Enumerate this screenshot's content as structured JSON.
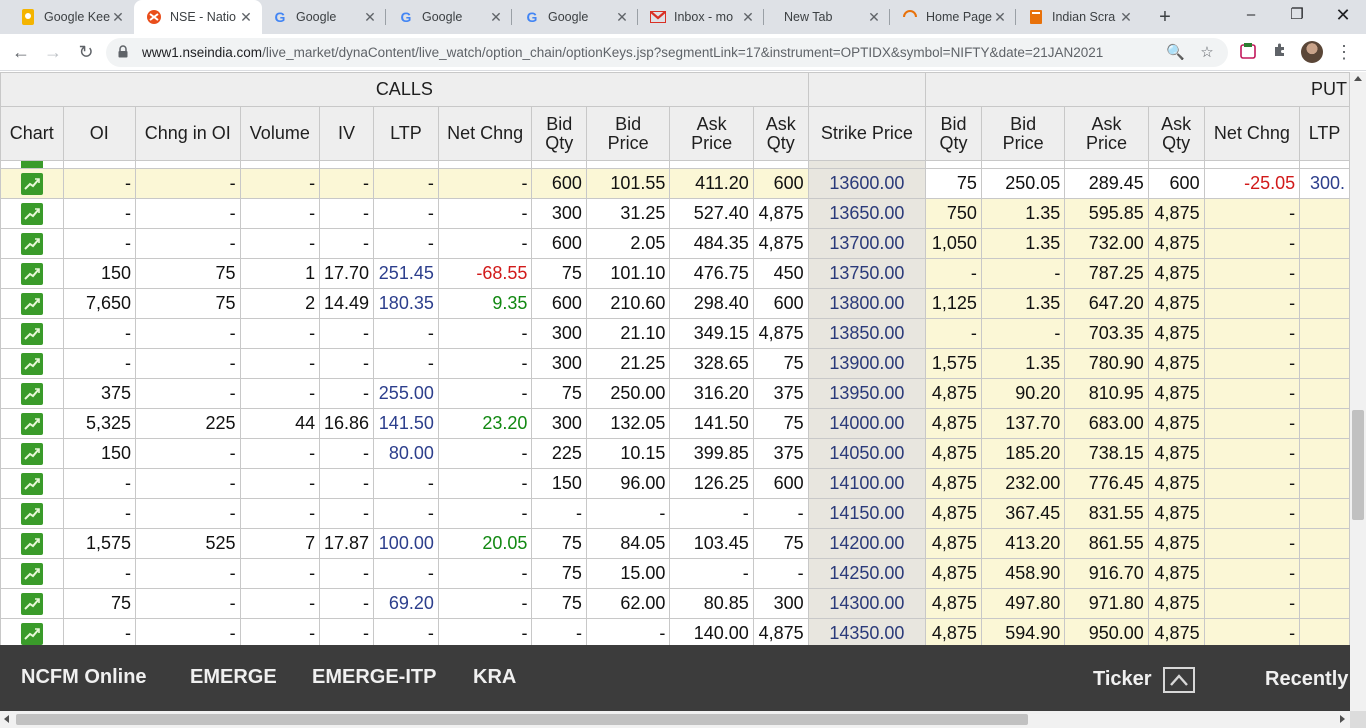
{
  "browser": {
    "tabs": [
      {
        "title": "Google Kee",
        "icon": "google-keep-icon",
        "active": false
      },
      {
        "title": "NSE - Natio",
        "icon": "nse-logo-icon",
        "active": true
      },
      {
        "title": "Google",
        "icon": "google-icon",
        "active": false
      },
      {
        "title": "Google",
        "icon": "google-icon",
        "active": false
      },
      {
        "title": "Google",
        "icon": "google-icon",
        "active": false
      },
      {
        "title": "Inbox - mo",
        "icon": "gmail-icon",
        "active": false
      },
      {
        "title": "New Tab",
        "icon": "",
        "active": false
      },
      {
        "title": "Home Page",
        "icon": "loading-icon",
        "active": false
      },
      {
        "title": "Indian Scra",
        "icon": "book-icon",
        "active": false
      }
    ],
    "url_host": "www1.nseindia.com",
    "url_path": "/live_market/dynaContent/live_watch/option_chain/optionKeys.jsp?segmentLink=17&instrument=OPTIDX&symbol=NIFTY&date=21JAN2021"
  },
  "table": {
    "calls_label": "CALLS",
    "puts_label": "PUT",
    "headers": [
      "Chart",
      "OI",
      "Chng in OI",
      "Volume",
      "IV",
      "LTP",
      "Net Chng",
      "Bid Qty",
      "Bid Price",
      "Ask Price",
      "Ask Qty",
      "Strike Price",
      "Bid Qty",
      "Bid Price",
      "Ask Price",
      "Ask Qty",
      "Net Chng",
      "LTP"
    ],
    "rows": [
      {
        "call": [
          "-",
          "-",
          "-",
          "-",
          "-",
          "-",
          "600",
          "101.55",
          "411.20",
          "600"
        ],
        "strike": "13600.00",
        "put": [
          "75",
          "250.05",
          "289.45",
          "600",
          "-25.05",
          "300."
        ],
        "calls_itm": true,
        "puts_itm": false
      },
      {
        "call": [
          "-",
          "-",
          "-",
          "-",
          "-",
          "-",
          "300",
          "31.25",
          "527.40",
          "4,875"
        ],
        "strike": "13650.00",
        "put": [
          "750",
          "1.35",
          "595.85",
          "4,875",
          "-",
          ""
        ],
        "calls_itm": false,
        "puts_itm": true
      },
      {
        "call": [
          "-",
          "-",
          "-",
          "-",
          "-",
          "-",
          "600",
          "2.05",
          "484.35",
          "4,875"
        ],
        "strike": "13700.00",
        "put": [
          "1,050",
          "1.35",
          "732.00",
          "4,875",
          "-",
          ""
        ],
        "calls_itm": false,
        "puts_itm": true
      },
      {
        "call": [
          "150",
          "75",
          "1",
          "17.70",
          "251.45",
          "-68.55",
          "75",
          "101.10",
          "476.75",
          "450"
        ],
        "strike": "13750.00",
        "put": [
          "-",
          "-",
          "787.25",
          "4,875",
          "-",
          ""
        ],
        "calls_itm": false,
        "puts_itm": true
      },
      {
        "call": [
          "7,650",
          "75",
          "2",
          "14.49",
          "180.35",
          "9.35",
          "600",
          "210.60",
          "298.40",
          "600"
        ],
        "strike": "13800.00",
        "put": [
          "1,125",
          "1.35",
          "647.20",
          "4,875",
          "-",
          ""
        ],
        "calls_itm": false,
        "puts_itm": true
      },
      {
        "call": [
          "-",
          "-",
          "-",
          "-",
          "-",
          "-",
          "300",
          "21.10",
          "349.15",
          "4,875"
        ],
        "strike": "13850.00",
        "put": [
          "-",
          "-",
          "703.35",
          "4,875",
          "-",
          ""
        ],
        "calls_itm": false,
        "puts_itm": true
      },
      {
        "call": [
          "-",
          "-",
          "-",
          "-",
          "-",
          "-",
          "300",
          "21.25",
          "328.65",
          "75"
        ],
        "strike": "13900.00",
        "put": [
          "1,575",
          "1.35",
          "780.90",
          "4,875",
          "-",
          ""
        ],
        "calls_itm": false,
        "puts_itm": true
      },
      {
        "call": [
          "375",
          "-",
          "-",
          "-",
          "255.00",
          "-",
          "75",
          "250.00",
          "316.20",
          "375"
        ],
        "strike": "13950.00",
        "put": [
          "4,875",
          "90.20",
          "810.95",
          "4,875",
          "-",
          ""
        ],
        "calls_itm": false,
        "puts_itm": true
      },
      {
        "call": [
          "5,325",
          "225",
          "44",
          "16.86",
          "141.50",
          "23.20",
          "300",
          "132.05",
          "141.50",
          "75"
        ],
        "strike": "14000.00",
        "put": [
          "4,875",
          "137.70",
          "683.00",
          "4,875",
          "-",
          ""
        ],
        "calls_itm": false,
        "puts_itm": true
      },
      {
        "call": [
          "150",
          "-",
          "-",
          "-",
          "80.00",
          "-",
          "225",
          "10.15",
          "399.85",
          "375"
        ],
        "strike": "14050.00",
        "put": [
          "4,875",
          "185.20",
          "738.15",
          "4,875",
          "-",
          ""
        ],
        "calls_itm": false,
        "puts_itm": true
      },
      {
        "call": [
          "-",
          "-",
          "-",
          "-",
          "-",
          "-",
          "150",
          "96.00",
          "126.25",
          "600"
        ],
        "strike": "14100.00",
        "put": [
          "4,875",
          "232.00",
          "776.45",
          "4,875",
          "-",
          ""
        ],
        "calls_itm": false,
        "puts_itm": true
      },
      {
        "call": [
          "-",
          "-",
          "-",
          "-",
          "-",
          "-",
          "-",
          "-",
          "-",
          "-"
        ],
        "strike": "14150.00",
        "put": [
          "4,875",
          "367.45",
          "831.55",
          "4,875",
          "-",
          ""
        ],
        "calls_itm": false,
        "puts_itm": true
      },
      {
        "call": [
          "1,575",
          "525",
          "7",
          "17.87",
          "100.00",
          "20.05",
          "75",
          "84.05",
          "103.45",
          "75"
        ],
        "strike": "14200.00",
        "put": [
          "4,875",
          "413.20",
          "861.55",
          "4,875",
          "-",
          ""
        ],
        "calls_itm": false,
        "puts_itm": true
      },
      {
        "call": [
          "-",
          "-",
          "-",
          "-",
          "-",
          "-",
          "75",
          "15.00",
          "-",
          "-"
        ],
        "strike": "14250.00",
        "put": [
          "4,875",
          "458.90",
          "916.70",
          "4,875",
          "-",
          ""
        ],
        "calls_itm": false,
        "puts_itm": true
      },
      {
        "call": [
          "75",
          "-",
          "-",
          "-",
          "69.20",
          "-",
          "75",
          "62.00",
          "80.85",
          "300"
        ],
        "strike": "14300.00",
        "put": [
          "4,875",
          "497.80",
          "971.80",
          "4,875",
          "-",
          ""
        ],
        "calls_itm": false,
        "puts_itm": true
      },
      {
        "call": [
          "-",
          "-",
          "-",
          "-",
          "-",
          "-",
          "-",
          "-",
          "140.00",
          "4,875"
        ],
        "strike": "14350.00",
        "put": [
          "4,875",
          "594.90",
          "950.00",
          "4,875",
          "-",
          ""
        ],
        "calls_itm": false,
        "puts_itm": true
      }
    ]
  },
  "footer": {
    "links": [
      "NCFM Online",
      "EMERGE",
      "EMERGE-ITP",
      "KRA"
    ],
    "ticker_label": "Ticker",
    "recently_label": "Recently"
  },
  "colors": {
    "itm_background": "#fbf7d6",
    "strike_background": "#e8e6df",
    "negative": "#d11a1a",
    "positive": "#118811",
    "ltp": "#2c3e8c",
    "footer_background": "#3c3c3c"
  }
}
